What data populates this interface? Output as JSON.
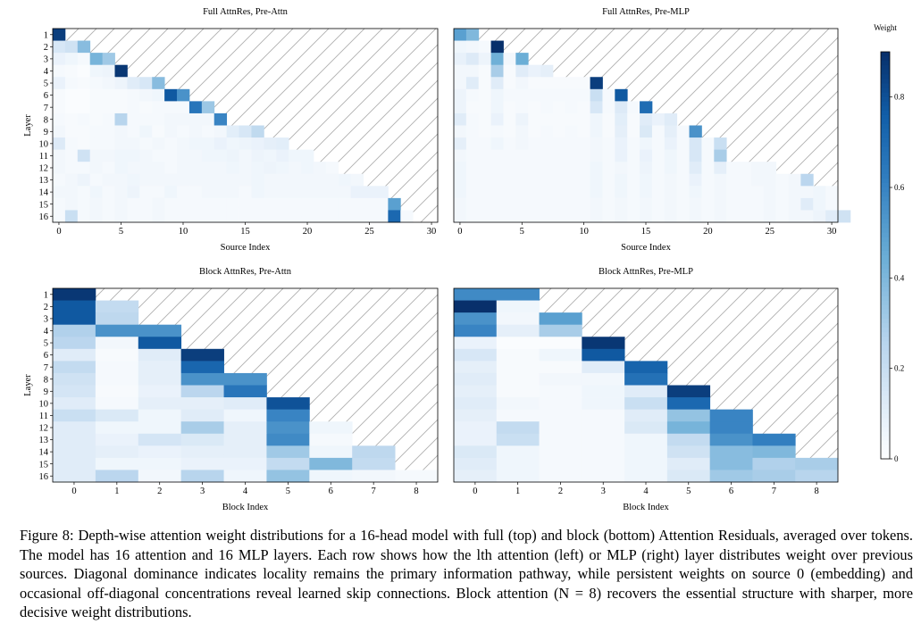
{
  "colors": {
    "low": "#ffffff",
    "high": "#08306b",
    "hatch": "#b0b0b0",
    "axis": "#000000"
  },
  "colorbar": {
    "label": "Weight",
    "ticks": [
      "0",
      "0.2",
      "0.4",
      "0.6",
      "0.8"
    ],
    "tick_values": [
      0,
      0.2,
      0.4,
      0.6,
      0.8
    ],
    "range": [
      0,
      0.9
    ]
  },
  "caption": {
    "label": "Figure 8:",
    "text": "Depth-wise attention weight distributions for a 16-head model with full (top) and block (bottom) Attention Residuals, averaged over tokens. The model has 16 attention and 16 MLP layers. Each row shows how the lth attention (left) or MLP (right) layer distributes weight over previous sources. Diagonal dominance indicates locality remains the primary information pathway, while persistent weights on source 0 (embedding) and occasional off-diagonal concentrations reveal learned skip connections. Block attention (N = 8) recovers the essential structure with sharper, more decisive weight distributions."
  },
  "chart_data": [
    {
      "type": "heatmap",
      "title": "Full AttnRes, Pre-Attn",
      "xlabel": "Source Index",
      "ylabel": "Layer",
      "xticks": [
        "0",
        "5",
        "10",
        "15",
        "20",
        "25",
        "30"
      ],
      "xtick_values": [
        0,
        5,
        10,
        15,
        20,
        25,
        30
      ],
      "yticks": [
        "1",
        "2",
        "3",
        "4",
        "5",
        "6",
        "7",
        "8",
        "9",
        "10",
        "11",
        "12",
        "13",
        "14",
        "15",
        "16"
      ],
      "num_sources": 31,
      "rows": [
        [
          0.86
        ],
        [
          0.15,
          0.18,
          0.38
        ],
        [
          0.08,
          0.06,
          0.04,
          0.42,
          0.32
        ],
        [
          0.04,
          0.03,
          0.02,
          0.06,
          0.07,
          0.88
        ],
        [
          0.08,
          0.04,
          0.03,
          0.04,
          0.05,
          0.07,
          0.12,
          0.15,
          0.38
        ],
        [
          0.03,
          0.02,
          0.02,
          0.03,
          0.03,
          0.03,
          0.04,
          0.05,
          0.06,
          0.78,
          0.55
        ],
        [
          0.03,
          0.02,
          0.02,
          0.03,
          0.03,
          0.03,
          0.04,
          0.03,
          0.04,
          0.04,
          0.04,
          0.66,
          0.33
        ],
        [
          0.04,
          0.03,
          0.04,
          0.03,
          0.04,
          0.26,
          0.04,
          0.04,
          0.04,
          0.05,
          0.05,
          0.05,
          0.05,
          0.6
        ],
        [
          0.05,
          0.03,
          0.03,
          0.04,
          0.04,
          0.05,
          0.04,
          0.06,
          0.03,
          0.05,
          0.04,
          0.05,
          0.04,
          0.05,
          0.11,
          0.15,
          0.23
        ],
        [
          0.13,
          0.04,
          0.03,
          0.04,
          0.04,
          0.05,
          0.05,
          0.04,
          0.05,
          0.04,
          0.05,
          0.06,
          0.06,
          0.08,
          0.06,
          0.07,
          0.08,
          0.1,
          0.11
        ],
        [
          0.05,
          0.04,
          0.18,
          0.05,
          0.05,
          0.06,
          0.06,
          0.05,
          0.04,
          0.04,
          0.05,
          0.05,
          0.06,
          0.06,
          0.07,
          0.05,
          0.07,
          0.06,
          0.08,
          0.06,
          0.06
        ],
        [
          0.05,
          0.04,
          0.04,
          0.05,
          0.04,
          0.06,
          0.05,
          0.05,
          0.05,
          0.04,
          0.05,
          0.05,
          0.05,
          0.05,
          0.06,
          0.05,
          0.06,
          0.07,
          0.06,
          0.05,
          0.06,
          0.05,
          0.04
        ],
        [
          0.04,
          0.05,
          0.07,
          0.04,
          0.05,
          0.05,
          0.06,
          0.05,
          0.05,
          0.05,
          0.05,
          0.05,
          0.05,
          0.05,
          0.05,
          0.05,
          0.06,
          0.05,
          0.05,
          0.05,
          0.05,
          0.05,
          0.05,
          0.06,
          0.05
        ],
        [
          0.05,
          0.05,
          0.04,
          0.06,
          0.04,
          0.05,
          0.07,
          0.04,
          0.04,
          0.06,
          0.04,
          0.04,
          0.05,
          0.05,
          0.05,
          0.04,
          0.06,
          0.05,
          0.05,
          0.05,
          0.05,
          0.05,
          0.05,
          0.05,
          0.08,
          0.08,
          0.08
        ],
        [
          0.04,
          0.05,
          0.04,
          0.05,
          0.04,
          0.05,
          0.04,
          0.04,
          0.05,
          0.04,
          0.04,
          0.04,
          0.04,
          0.04,
          0.04,
          0.04,
          0.04,
          0.04,
          0.04,
          0.04,
          0.04,
          0.04,
          0.04,
          0.04,
          0.04,
          0.04,
          0.04,
          0.5
        ],
        [
          0.04,
          0.2,
          0.04,
          0.05,
          0.04,
          0.05,
          0.04,
          0.04,
          0.05,
          0.04,
          0.04,
          0.04,
          0.04,
          0.04,
          0.04,
          0.04,
          0.04,
          0.04,
          0.04,
          0.04,
          0.04,
          0.04,
          0.04,
          0.04,
          0.04,
          0.04,
          0.04,
          0.72,
          0.04
        ]
      ]
    },
    {
      "type": "heatmap",
      "title": "Full AttnRes, Pre-MLP",
      "xlabel": "Source Index",
      "ylabel": "",
      "xticks": [
        "0",
        "5",
        "10",
        "15",
        "20",
        "25",
        "30"
      ],
      "xtick_values": [
        0,
        5,
        10,
        15,
        20,
        25,
        30
      ],
      "yticks": [],
      "num_sources": 31,
      "rows": [
        [
          0.5,
          0.4
        ],
        [
          0.06,
          0.05,
          0.04,
          0.9
        ],
        [
          0.09,
          0.13,
          0.07,
          0.44,
          0.05,
          0.45
        ],
        [
          0.05,
          0.05,
          0.03,
          0.3,
          0.03,
          0.12,
          0.08,
          0.1
        ],
        [
          0.05,
          0.12,
          0.03,
          0.12,
          0.03,
          0.05,
          0.03,
          0.03,
          0.03,
          0.03,
          0.03,
          0.86
        ],
        [
          0.07,
          0.04,
          0.03,
          0.06,
          0.04,
          0.04,
          0.04,
          0.04,
          0.04,
          0.04,
          0.04,
          0.2,
          0.04,
          0.78
        ],
        [
          0.07,
          0.03,
          0.03,
          0.06,
          0.03,
          0.04,
          0.03,
          0.04,
          0.03,
          0.04,
          0.03,
          0.15,
          0.04,
          0.13,
          0.04,
          0.7
        ],
        [
          0.12,
          0.04,
          0.03,
          0.08,
          0.03,
          0.07,
          0.03,
          0.03,
          0.03,
          0.03,
          0.03,
          0.06,
          0.03,
          0.11,
          0.03,
          0.12,
          0.08,
          0.12
        ],
        [
          0.05,
          0.04,
          0.03,
          0.04,
          0.03,
          0.05,
          0.03,
          0.04,
          0.03,
          0.04,
          0.03,
          0.06,
          0.03,
          0.1,
          0.03,
          0.14,
          0.04,
          0.1,
          0.04,
          0.55
        ],
        [
          0.1,
          0.04,
          0.04,
          0.06,
          0.04,
          0.05,
          0.04,
          0.04,
          0.04,
          0.04,
          0.04,
          0.05,
          0.04,
          0.08,
          0.04,
          0.06,
          0.04,
          0.08,
          0.04,
          0.15,
          0.04,
          0.2
        ],
        [
          0.05,
          0.04,
          0.04,
          0.04,
          0.04,
          0.04,
          0.04,
          0.04,
          0.04,
          0.04,
          0.04,
          0.05,
          0.04,
          0.08,
          0.04,
          0.08,
          0.04,
          0.06,
          0.04,
          0.15,
          0.04,
          0.3
        ],
        [
          0.06,
          0.04,
          0.04,
          0.04,
          0.04,
          0.04,
          0.04,
          0.04,
          0.04,
          0.04,
          0.04,
          0.06,
          0.04,
          0.05,
          0.04,
          0.07,
          0.04,
          0.06,
          0.04,
          0.12,
          0.04,
          0.1,
          0.04,
          0.04,
          0.05,
          0.05
        ],
        [
          0.06,
          0.04,
          0.04,
          0.04,
          0.04,
          0.04,
          0.04,
          0.04,
          0.04,
          0.04,
          0.04,
          0.06,
          0.04,
          0.06,
          0.04,
          0.06,
          0.04,
          0.05,
          0.04,
          0.08,
          0.04,
          0.05,
          0.04,
          0.04,
          0.05,
          0.05,
          0.04,
          0.05,
          0.25
        ],
        [
          0.06,
          0.04,
          0.04,
          0.04,
          0.04,
          0.04,
          0.04,
          0.04,
          0.04,
          0.04,
          0.04,
          0.06,
          0.04,
          0.06,
          0.04,
          0.06,
          0.04,
          0.05,
          0.04,
          0.06,
          0.04,
          0.05,
          0.04,
          0.04,
          0.04,
          0.05,
          0.04,
          0.05,
          0.05,
          0.06,
          0.04
        ],
        [
          0.05,
          0.04,
          0.04,
          0.04,
          0.04,
          0.04,
          0.04,
          0.04,
          0.04,
          0.04,
          0.04,
          0.05,
          0.04,
          0.05,
          0.04,
          0.05,
          0.04,
          0.05,
          0.04,
          0.05,
          0.04,
          0.05,
          0.04,
          0.04,
          0.04,
          0.05,
          0.04,
          0.05,
          0.12,
          0.06,
          0.04
        ],
        [
          0.05,
          0.04,
          0.04,
          0.04,
          0.04,
          0.04,
          0.04,
          0.04,
          0.04,
          0.04,
          0.04,
          0.05,
          0.04,
          0.05,
          0.04,
          0.05,
          0.04,
          0.05,
          0.04,
          0.05,
          0.04,
          0.05,
          0.04,
          0.04,
          0.04,
          0.05,
          0.04,
          0.05,
          0.05,
          0.07,
          0.12,
          0.18
        ]
      ]
    },
    {
      "type": "heatmap",
      "title": "Block AttnRes, Pre-Attn",
      "xlabel": "Block Index",
      "ylabel": "Layer",
      "xticks": [
        "0",
        "1",
        "2",
        "3",
        "4",
        "5",
        "6",
        "7",
        "8"
      ],
      "xtick_values": [
        0,
        1,
        2,
        3,
        4,
        5,
        6,
        7,
        8
      ],
      "yticks": [
        "1",
        "2",
        "3",
        "4",
        "5",
        "6",
        "7",
        "8",
        "9",
        "10",
        "11",
        "12",
        "13",
        "14",
        "15",
        "16"
      ],
      "num_sources": 9,
      "rows": [
        [
          0.88
        ],
        [
          0.78,
          0.22
        ],
        [
          0.78,
          0.24
        ],
        [
          0.28,
          0.55,
          0.55
        ],
        [
          0.25,
          0.05,
          0.78
        ],
        [
          0.12,
          0.03,
          0.12,
          0.86
        ],
        [
          0.22,
          0.04,
          0.1,
          0.73
        ],
        [
          0.18,
          0.04,
          0.1,
          0.55,
          0.55
        ],
        [
          0.16,
          0.03,
          0.08,
          0.25,
          0.66
        ],
        [
          0.12,
          0.04,
          0.1,
          0.1,
          0.12,
          0.8
        ],
        [
          0.2,
          0.14,
          0.06,
          0.12,
          0.06,
          0.6
        ],
        [
          0.12,
          0.06,
          0.06,
          0.3,
          0.1,
          0.55,
          0.06
        ],
        [
          0.12,
          0.08,
          0.16,
          0.14,
          0.1,
          0.58,
          0.04
        ],
        [
          0.12,
          0.1,
          0.08,
          0.1,
          0.1,
          0.32,
          0.06,
          0.24
        ],
        [
          0.12,
          0.06,
          0.06,
          0.08,
          0.08,
          0.22,
          0.4,
          0.22
        ],
        [
          0.12,
          0.25,
          0.05,
          0.26,
          0.06,
          0.35,
          0.06,
          0.05,
          0.04
        ]
      ]
    },
    {
      "type": "heatmap",
      "title": "Block AttnRes, Pre-MLP",
      "xlabel": "Block Index",
      "ylabel": "",
      "xticks": [
        "0",
        "1",
        "2",
        "3",
        "4",
        "5",
        "6",
        "7",
        "8"
      ],
      "xtick_values": [
        0,
        1,
        2,
        3,
        4,
        5,
        6,
        7,
        8
      ],
      "yticks": [],
      "num_sources": 9,
      "rows": [
        [
          0.58,
          0.58
        ],
        [
          0.9,
          0.06
        ],
        [
          0.55,
          0.05,
          0.5
        ],
        [
          0.6,
          0.1,
          0.3
        ],
        [
          0.08,
          0.02,
          0.02,
          0.88
        ],
        [
          0.15,
          0.03,
          0.06,
          0.78
        ],
        [
          0.1,
          0.03,
          0.03,
          0.12,
          0.74
        ],
        [
          0.12,
          0.03,
          0.05,
          0.05,
          0.68
        ],
        [
          0.1,
          0.03,
          0.04,
          0.06,
          0.12,
          0.86
        ],
        [
          0.12,
          0.05,
          0.04,
          0.06,
          0.2,
          0.72
        ],
        [
          0.1,
          0.04,
          0.04,
          0.04,
          0.12,
          0.35,
          0.6
        ],
        [
          0.08,
          0.22,
          0.04,
          0.04,
          0.14,
          0.42,
          0.6
        ],
        [
          0.08,
          0.2,
          0.04,
          0.04,
          0.06,
          0.22,
          0.55,
          0.62
        ],
        [
          0.14,
          0.06,
          0.04,
          0.04,
          0.06,
          0.18,
          0.38,
          0.4
        ],
        [
          0.12,
          0.06,
          0.04,
          0.04,
          0.06,
          0.12,
          0.38,
          0.28,
          0.3
        ],
        [
          0.1,
          0.06,
          0.04,
          0.04,
          0.06,
          0.14,
          0.32,
          0.3,
          0.26
        ]
      ]
    }
  ]
}
